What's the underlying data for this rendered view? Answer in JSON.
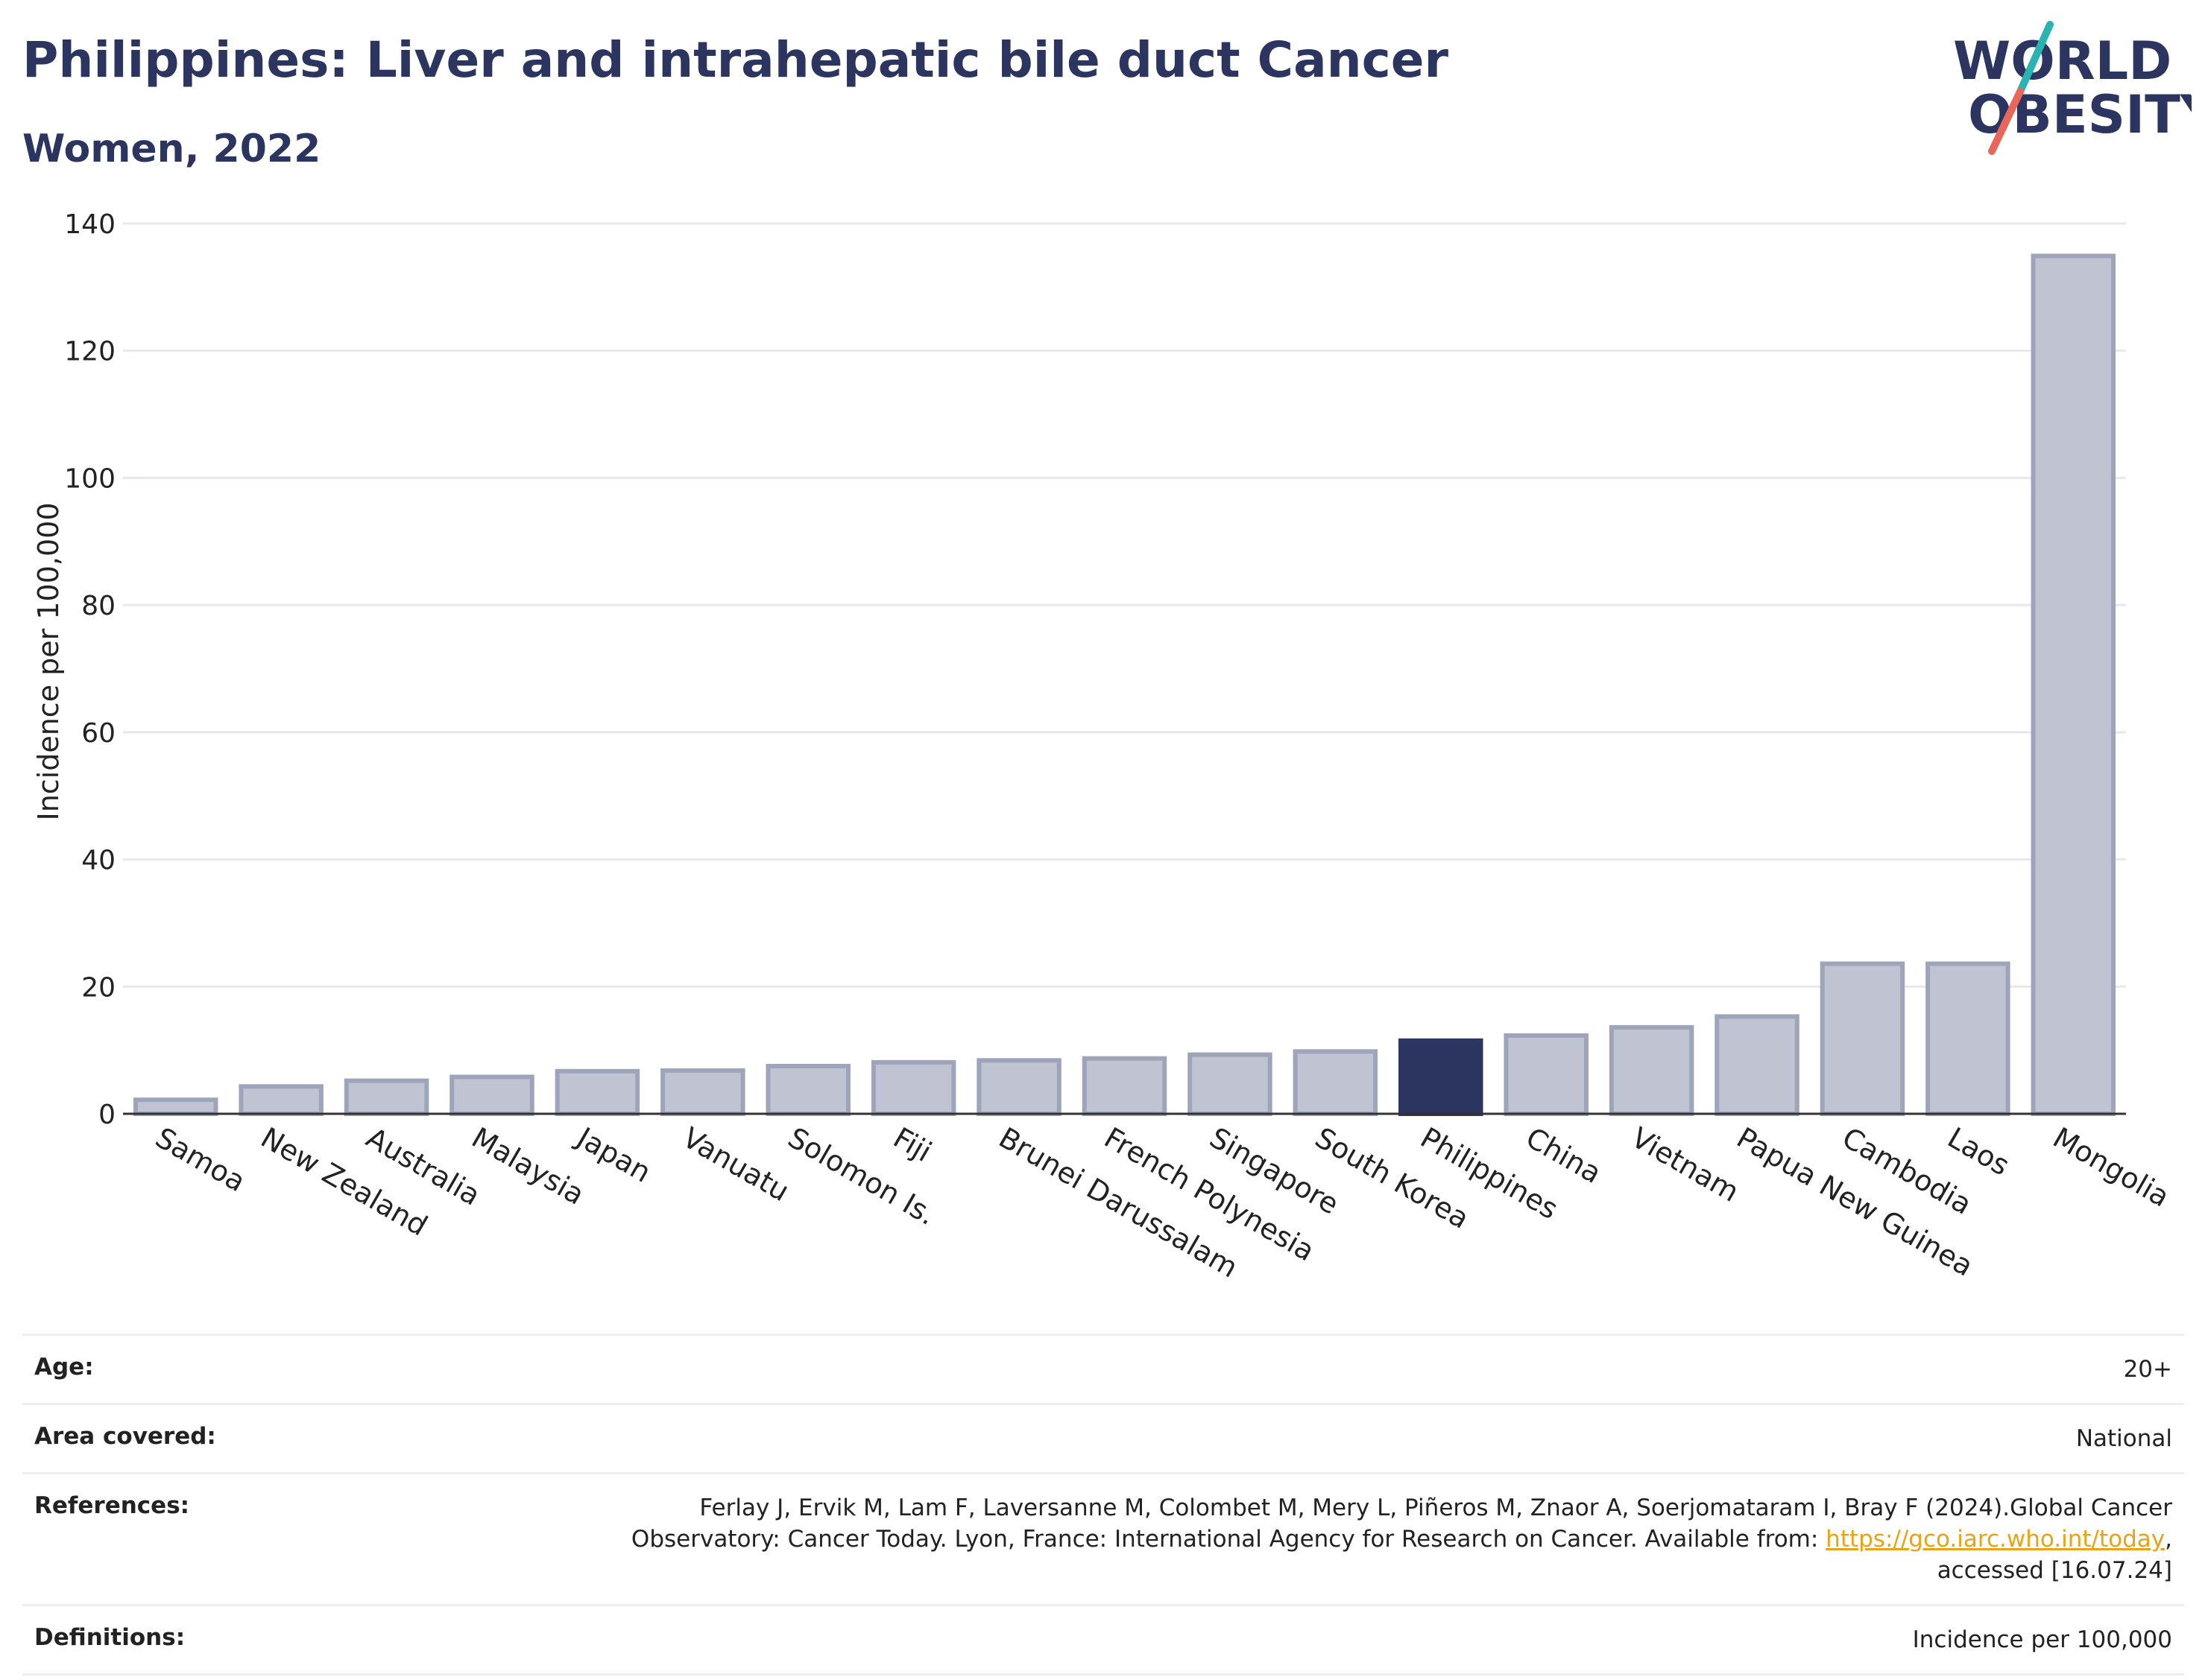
{
  "header": {
    "title": "Philippines: Liver and intrahepatic bile duct Cancer",
    "subtitle": "Women, 2022"
  },
  "logo": {
    "line1": "WORLD",
    "line2": "OBESITY",
    "colors": {
      "text": "#2b3560",
      "slash_teal": "#2ab3b1",
      "slash_coral": "#e8675a"
    }
  },
  "chart_data": {
    "type": "bar",
    "ylabel": "Incidence per 100,000",
    "ylim": [
      0,
      140
    ],
    "yticks": [
      0,
      20,
      40,
      60,
      80,
      100,
      120,
      140
    ],
    "grid": true,
    "highlight": "Philippines",
    "colors": {
      "bar": "#c0c4d2",
      "bar_edge": "#9ea4ba",
      "highlight": "#2b3560"
    },
    "categories": [
      "Samoa",
      "New Zealand",
      "Australia",
      "Malaysia",
      "Japan",
      "Vanuatu",
      "Solomon Is.",
      "Fiji",
      "Brunei Darussalam",
      "French Polynesia",
      "Singapore",
      "South Korea",
      "Philippines",
      "China",
      "Vietnam",
      "Papua New Guinea",
      "Cambodia",
      "Laos",
      "Mongolia"
    ],
    "values": [
      2.2,
      4.3,
      5.2,
      5.8,
      6.7,
      6.8,
      7.5,
      8.1,
      8.4,
      8.7,
      9.3,
      9.8,
      11.5,
      12.3,
      13.6,
      15.3,
      23.6,
      23.6,
      134.9
    ]
  },
  "info": [
    {
      "label": "Age:",
      "value": "20+"
    },
    {
      "label": "Area covered:",
      "value": "National"
    },
    {
      "label": "References:",
      "value_line1": "Ferlay J, Ervik M, Lam F, Laversanne M, Colombet M, Mery L, Piñeros M, Znaor A, Soerjomataram I, Bray F (2024).Global Cancer",
      "value_line2_pre": "Observatory: Cancer Today. Lyon, France: International Agency for Research on Cancer. Available from: ",
      "link_text": "https://gco.iarc.who.int/today",
      "value_line2_post": ",",
      "value_line3": "accessed [16.07.24]"
    },
    {
      "label": "Definitions:",
      "value": "Incidence per 100,000"
    }
  ]
}
